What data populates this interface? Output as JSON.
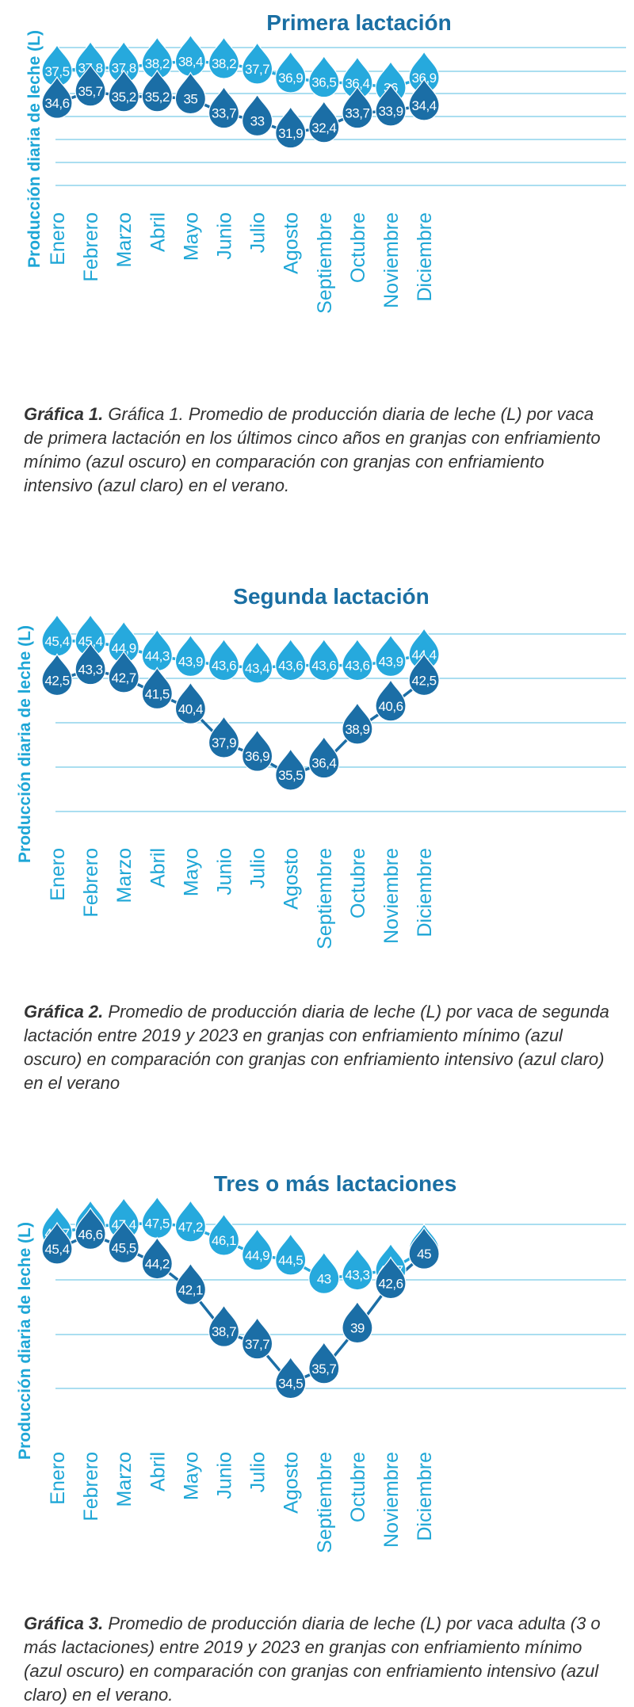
{
  "colors": {
    "light": "#26a9dd",
    "dark": "#1b6ea6",
    "axis": "#2e7eaa",
    "grid": "#1ea6d6",
    "title": "#1a6fa3"
  },
  "months": [
    "Enero",
    "Febrero",
    "Marzo",
    "Abril",
    "Mayo",
    "Junio",
    "Julio",
    "Agosto",
    "Septiembre",
    "Octubre",
    "Noviembre",
    "Diciembre"
  ],
  "chart_data": [
    {
      "type": "line",
      "title": "Primera lactación",
      "ylabel": "Producción diaria de leche (L)",
      "categories": [
        "Enero",
        "Febrero",
        "Marzo",
        "Abril",
        "Mayo",
        "Junio",
        "Julio",
        "Agosto",
        "Septiembre",
        "Octubre",
        "Noviembre",
        "Diciembre"
      ],
      "ylim": [
        27,
        40
      ],
      "series": [
        {
          "values": [
            37.5,
            37.8,
            37.8,
            38.2,
            38.4,
            38.2,
            37.7,
            36.9,
            36.5,
            36.4,
            36,
            36.9
          ],
          "labels": [
            "37,5",
            "37,8",
            "37,8",
            "38,2",
            "38,4",
            "38,2",
            "37,7",
            "36,9",
            "36,5",
            "36,4",
            "36",
            "36,9"
          ],
          "color": "#26a9dd"
        },
        {
          "values": [
            34.6,
            35.7,
            35.2,
            35.2,
            35,
            33.7,
            33,
            31.9,
            32.4,
            33.7,
            33.9,
            34.4
          ],
          "labels": [
            "34,6",
            "35,7",
            "35,2",
            "35,2",
            "35",
            "33,7",
            "33",
            "31,9",
            "32,4",
            "33,7",
            "33,9",
            "34,4"
          ],
          "color": "#1b6ea6"
        }
      ],
      "grid": true
    },
    {
      "type": "line",
      "title": "Segunda lactación",
      "ylabel": "Producción diaria de leche (L)",
      "categories": [
        "Enero",
        "Febrero",
        "Marzo",
        "Abril",
        "Mayo",
        "Junio",
        "Julio",
        "Agosto",
        "Septiembre",
        "Octubre",
        "Noviembre",
        "Diciembre"
      ],
      "ylim": [
        32,
        46.5
      ],
      "series": [
        {
          "values": [
            45.4,
            45.4,
            44.9,
            44.3,
            43.9,
            43.6,
            43.4,
            43.6,
            43.6,
            43.6,
            43.9,
            44.4
          ],
          "labels": [
            "45,4",
            "45,4",
            "44,9",
            "44,3",
            "43,9",
            "43,6",
            "43,4",
            "43,6",
            "43,6",
            "43,6",
            "43,9",
            "44,4"
          ],
          "color": "#26a9dd"
        },
        {
          "values": [
            42.5,
            43.3,
            42.7,
            41.5,
            40.4,
            37.9,
            36.9,
            35.5,
            36.4,
            38.9,
            40.6,
            42.5
          ],
          "labels": [
            "42,5",
            "43,3",
            "42,7",
            "41,5",
            "40,4",
            "37,9",
            "36,9",
            "35,5",
            "36,4",
            "38,9",
            "40,6",
            "42,5"
          ],
          "color": "#1b6ea6"
        }
      ],
      "grid": true
    },
    {
      "type": "line",
      "title": "Tres o más lactaciones",
      "ylabel": "Producción diaria de leche (L)",
      "categories": [
        "Enero",
        "Febrero",
        "Marzo",
        "Abril",
        "Mayo",
        "Junio",
        "Julio",
        "Agosto",
        "Septiembre",
        "Octubre",
        "Noviembre",
        "Diciembre"
      ],
      "ylim": [
        31,
        49
      ],
      "series": [
        {
          "values": [
            46.7,
            47.2,
            47.4,
            47.5,
            47.2,
            46.1,
            44.9,
            44.5,
            43,
            43.3,
            43.7,
            45.3
          ],
          "labels": [
            "46,7",
            "47,2",
            "47,4",
            "47,5",
            "47,2",
            "46,1",
            "44,9",
            "44,5",
            "43",
            "43,3",
            "43,7",
            "45,3"
          ],
          "color": "#26a9dd"
        },
        {
          "values": [
            45.4,
            46.6,
            45.5,
            44.2,
            42.1,
            38.7,
            37.7,
            34.5,
            35.7,
            39,
            42.6,
            45
          ],
          "labels": [
            "45,4",
            "46,6",
            "45,5",
            "44,2",
            "42,1",
            "38,7",
            "37,7",
            "34,5",
            "35,7",
            "39",
            "42,6",
            "45"
          ],
          "color": "#1b6ea6"
        }
      ],
      "grid": true
    }
  ],
  "captions": [
    {
      "lead": "Gráfica 1.",
      "text": "Gráfica 1. Promedio de producción diaria de leche (L) por vaca de primera lactación en los últimos cinco años en granjas con enfriamiento mínimo (azul oscuro) en comparación con granjas con enfriamiento intensivo (azul claro) en el verano."
    },
    {
      "lead": "Gráfica 2.",
      "text": "Promedio de producción diaria de leche (L) por vaca de segunda lactación entre 2019 y 2023 en granjas con enfriamiento mínimo (azul oscuro) en comparación con granjas con enfriamiento intensivo (azul claro) en el verano"
    },
    {
      "lead": "Gráfica 3.",
      "text": "Promedio de producción diaria de leche (L) por vaca adulta (3 o más lactaciones) entre 2019 y 2023 en granjas con enfriamiento mínimo (azul oscuro) en comparación con granjas con enfriamiento intensivo (azul claro) en el verano."
    }
  ]
}
